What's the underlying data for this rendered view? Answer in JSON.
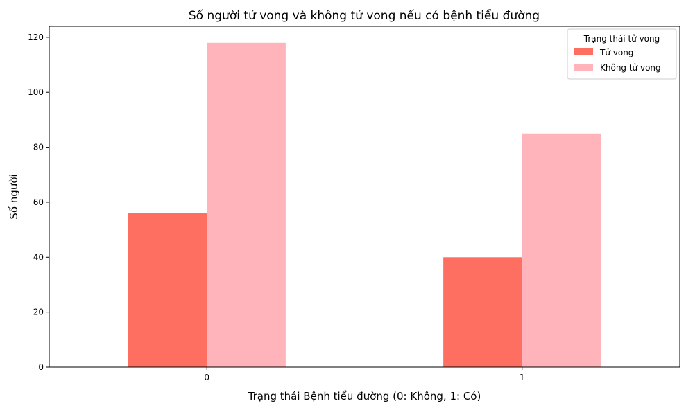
{
  "chart_data": {
    "type": "bar",
    "title": "Số người tử vong và không tử vong nếu có bệnh tiểu đường",
    "xlabel": "Trạng thái Bệnh tiểu đường (0: Không, 1: Có)",
    "ylabel": "Số người",
    "categories": [
      "0",
      "1"
    ],
    "series": [
      {
        "name": "Tử vong",
        "values": [
          56,
          40
        ],
        "color": "#ff6f61"
      },
      {
        "name": "Không tử vong",
        "values": [
          118,
          85
        ],
        "color": "#ffb3ba"
      }
    ],
    "ylim": [
      0,
      124
    ],
    "yticks": [
      0,
      20,
      40,
      60,
      80,
      100,
      120
    ],
    "grid": false,
    "legend": {
      "title": "Trạng thái tử vong",
      "position": "top-right"
    }
  }
}
